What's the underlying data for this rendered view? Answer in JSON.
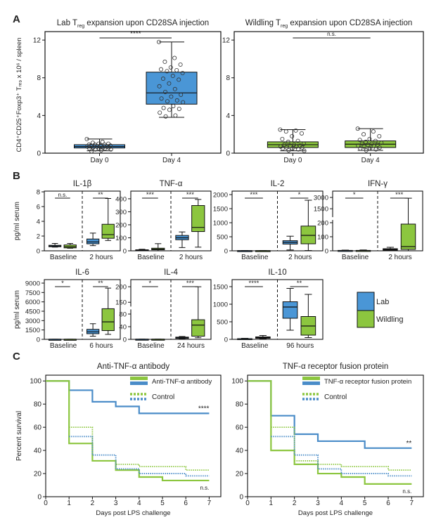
{
  "colors": {
    "lab": "#4a96d6",
    "wildling": "#8cc63f",
    "surv_blue": "#4a8cc8",
    "surv_green": "#8cc63f"
  },
  "chart_data": [
    {
      "panel": "A",
      "type": "box",
      "title": {
        "prefix": "Lab T",
        "sub": "reg",
        "suffix": " expansion upon CD28SA injection"
      },
      "ylabel": "CD4⁺CD25⁺Foxp3⁺ Tᵣₑ₉ x 10⁶ / spleen",
      "ylim": [
        0,
        12.9
      ],
      "yticks": [
        0,
        4,
        8,
        12
      ],
      "categories": [
        "Day 0",
        "Day 4"
      ],
      "group": "lab",
      "sig": "****",
      "boxes": [
        {
          "lo": 0.25,
          "q1": 0.55,
          "med": 0.7,
          "q3": 0.9,
          "hi": 1.5,
          "points": [
            1.5,
            1.2,
            1.1,
            1.0,
            1.0,
            0.9,
            0.9,
            0.9,
            0.8,
            0.8,
            0.8,
            0.7,
            0.7,
            0.7,
            0.6,
            0.6,
            0.6,
            0.5,
            0.5,
            0.5,
            0.4,
            0.4,
            0.3,
            0.2
          ]
        },
        {
          "lo": 3.8,
          "q1": 5.2,
          "med": 6.4,
          "q3": 8.6,
          "hi": 11.8,
          "points": [
            11.8,
            10.1,
            9.7,
            9.4,
            9.1,
            8.9,
            8.8,
            8.7,
            8.5,
            8.2,
            7.9,
            7.8,
            7.4,
            7.1,
            6.8,
            6.5,
            6.2,
            6.0,
            5.8,
            5.6,
            5.5,
            5.4,
            5.0,
            4.8,
            4.7,
            4.6,
            4.3,
            4.0,
            3.9
          ]
        }
      ]
    },
    {
      "panel": "A",
      "type": "box",
      "title": {
        "prefix": "Wildling T",
        "sub": "reg",
        "suffix": " expansion upon CD28SA injection"
      },
      "ylim": [
        0,
        12.9
      ],
      "yticks": [
        0,
        4,
        8,
        12
      ],
      "categories": [
        "Day 0",
        "Day 4"
      ],
      "group": "wildling",
      "sig": "n.s.",
      "boxes": [
        {
          "lo": 0.25,
          "q1": 0.6,
          "med": 0.9,
          "q3": 1.2,
          "hi": 2.5,
          "points": [
            2.5,
            2.4,
            2.3,
            2.1,
            1.8,
            1.5,
            1.3,
            1.2,
            1.0,
            0.9,
            0.9,
            0.8,
            0.8,
            0.7,
            0.7,
            0.6,
            0.6,
            0.5,
            0.5,
            0.4,
            0.3,
            0.25
          ]
        },
        {
          "lo": 0.3,
          "q1": 0.6,
          "med": 0.95,
          "q3": 1.3,
          "hi": 2.6,
          "points": [
            2.6,
            2.3,
            2.0,
            1.8,
            1.5,
            1.4,
            1.3,
            1.2,
            1.1,
            1.0,
            1.0,
            0.9,
            0.9,
            0.8,
            0.8,
            0.7,
            0.6,
            0.5,
            0.5,
            0.4,
            0.3
          ]
        }
      ]
    },
    {
      "panel": "B",
      "type": "box",
      "title": "IL-1β",
      "ylabel": "pg/ml serum",
      "ylim": [
        0,
        8.1
      ],
      "yticks": [
        0,
        2,
        4,
        6,
        8
      ],
      "categories": [
        "Baseline",
        "2 hours"
      ],
      "sig": [
        "n.s.",
        "**"
      ],
      "groups": [
        {
          "lab": {
            "lo": 0.5,
            "q1": 0.55,
            "med": 0.65,
            "q3": 0.75,
            "hi": 1.0
          },
          "wildling": {
            "lo": 0.35,
            "q1": 0.4,
            "med": 0.55,
            "q3": 0.8,
            "hi": 1.0
          }
        },
        {
          "lab": {
            "lo": 0.7,
            "q1": 0.95,
            "med": 1.2,
            "q3": 1.6,
            "hi": 2.4
          },
          "wildling": {
            "lo": 1.4,
            "q1": 1.7,
            "med": 2.2,
            "q3": 3.6,
            "hi": 7.1
          }
        }
      ]
    },
    {
      "panel": "B",
      "type": "box",
      "title": "TNF-α",
      "ylim": [
        0,
        459
      ],
      "yticks": [
        0,
        100,
        200,
        300,
        400
      ],
      "categories": [
        "Baseline",
        "2 hours"
      ],
      "sig": [
        "***",
        "***"
      ],
      "groups": [
        {
          "lab": {
            "lo": 0,
            "q1": 2,
            "med": 5,
            "q3": 8,
            "hi": 12
          },
          "wildling": {
            "lo": 0,
            "q1": 8,
            "med": 12,
            "q3": 20,
            "hi": 55
          }
        },
        {
          "lab": {
            "lo": 25,
            "q1": 85,
            "med": 100,
            "q3": 118,
            "hi": 145
          },
          "wildling": {
            "lo": 28,
            "q1": 148,
            "med": 180,
            "q3": 348,
            "hi": 395
          }
        }
      ]
    },
    {
      "panel": "B",
      "type": "box",
      "title": "IL-2",
      "ylim": [
        0,
        2125
      ],
      "yticks": [
        0,
        500,
        1000,
        1500,
        2000
      ],
      "categories": [
        "Baseline",
        "2 hours"
      ],
      "sig": [
        "***",
        "*"
      ],
      "groups": [
        {
          "lab": {
            "lo": 0,
            "q1": 3,
            "med": 5,
            "q3": 8,
            "hi": 12
          },
          "wildling": {
            "lo": 0,
            "q1": 3,
            "med": 5,
            "q3": 8,
            "hi": 12
          }
        },
        {
          "lab": {
            "lo": 30,
            "q1": 240,
            "med": 300,
            "q3": 360,
            "hi": 520
          },
          "wildling": {
            "lo": 10,
            "q1": 250,
            "med": 550,
            "q3": 880,
            "hi": 1800
          }
        }
      ]
    },
    {
      "panel": "B",
      "type": "box",
      "title": "IFN-γ",
      "axis_break": true,
      "segments": [
        [
          0,
          225
        ],
        [
          280,
          3840
        ]
      ],
      "yticks": [
        0,
        100,
        200,
        1500,
        3000
      ],
      "categories": [
        "Baseline",
        "2 hours"
      ],
      "sig": [
        "*",
        "***"
      ],
      "groups": [
        {
          "lab": {
            "lo": 0,
            "q1": 1,
            "med": 2,
            "q3": 3,
            "hi": 5
          },
          "wildling": {
            "lo": 0,
            "q1": 1,
            "med": 2,
            "q3": 3,
            "hi": 6
          }
        },
        {
          "lab": {
            "lo": 0,
            "q1": 5,
            "med": 10,
            "q3": 15,
            "hi": 25
          },
          "wildling": {
            "lo": 0,
            "q1": 10,
            "med": 30,
            "q3": 190,
            "hi": 2900
          }
        }
      ]
    },
    {
      "panel": "B",
      "type": "box",
      "title": "IL-6",
      "ylabel": "pg/ml serum",
      "ylim": [
        0,
        9560
      ],
      "yticks": [
        0,
        1500,
        3000,
        4500,
        6000,
        7500,
        9000
      ],
      "categories": [
        "Baseline",
        "6 hours"
      ],
      "sig": [
        "*",
        "**"
      ],
      "groups": [
        {
          "lab": {
            "lo": 0,
            "q1": 5,
            "med": 10,
            "q3": 15,
            "hi": 20
          },
          "wildling": {
            "lo": 0,
            "q1": 5,
            "med": 10,
            "q3": 15,
            "hi": 20
          }
        },
        {
          "lab": {
            "lo": 500,
            "q1": 900,
            "med": 1200,
            "q3": 1600,
            "hi": 2500
          },
          "wildling": {
            "lo": 800,
            "q1": 1400,
            "med": 2800,
            "q3": 4900,
            "hi": 8200
          }
        }
      ]
    },
    {
      "panel": "B",
      "type": "box",
      "title": "IL-4",
      "axis_break": true,
      "segments": [
        [
          0,
          85
        ],
        [
          146,
          223
        ]
      ],
      "yticks": [
        0,
        40,
        80,
        150,
        200
      ],
      "categories": [
        "Baseline",
        "24 hours"
      ],
      "sig": [
        "*",
        "***"
      ],
      "groups": [
        {
          "lab": {
            "lo": 0,
            "q1": 0.2,
            "med": 0.4,
            "q3": 0.6,
            "hi": 1
          },
          "wildling": {
            "lo": 0,
            "q1": 0.2,
            "med": 0.4,
            "q3": 0.6,
            "hi": 1
          }
        },
        {
          "lab": {
            "lo": 2,
            "q1": 3,
            "med": 5,
            "q3": 7,
            "hi": 9
          },
          "wildling": {
            "lo": 5,
            "q1": 10,
            "med": 45,
            "q3": 62,
            "hi": 200
          }
        }
      ]
    },
    {
      "panel": "B",
      "type": "box",
      "title": "IL-10",
      "ylim": [
        0,
        1700
      ],
      "yticks": [
        0,
        500,
        1000,
        1500
      ],
      "categories": [
        "Baseline",
        "96 hours"
      ],
      "sig": [
        "****",
        "**"
      ],
      "groups": [
        {
          "lab": {
            "lo": 5,
            "q1": 10,
            "med": 15,
            "q3": 20,
            "hi": 30
          },
          "wildling": {
            "lo": 10,
            "q1": 30,
            "med": 50,
            "q3": 70,
            "hi": 110
          }
        },
        {
          "lab": {
            "lo": 260,
            "q1": 600,
            "med": 920,
            "q3": 1070,
            "hi": 1450
          },
          "wildling": {
            "lo": 50,
            "q1": 120,
            "med": 380,
            "q3": 650,
            "hi": 1280
          }
        }
      ]
    },
    {
      "panel": "C",
      "type": "line",
      "title": "Anti-TNF-α antibody",
      "xlabel": "Days post LPS challenge",
      "ylabel": "Percent survival",
      "xlim": [
        0,
        7.5
      ],
      "ylim": [
        0,
        105
      ],
      "xticks": [
        0,
        1,
        2,
        3,
        4,
        5,
        6,
        7
      ],
      "yticks": [
        0,
        20,
        40,
        60,
        80,
        100
      ],
      "legend": {
        "treatment": "Anti-TNF-α antibody",
        "control": "Control"
      },
      "annotations": {
        "blue": "****",
        "green": "n.s."
      },
      "series": [
        {
          "color": "blue",
          "style": "solid",
          "steps": [
            [
              0,
              100
            ],
            [
              1,
              92
            ],
            [
              2,
              82
            ],
            [
              3,
              78
            ],
            [
              4,
              72
            ],
            [
              7,
              72
            ]
          ]
        },
        {
          "color": "green",
          "style": "solid",
          "steps": [
            [
              0,
              100
            ],
            [
              1,
              46
            ],
            [
              2,
              31
            ],
            [
              3,
              23
            ],
            [
              4,
              17
            ],
            [
              5,
              14
            ],
            [
              7,
              14
            ]
          ]
        },
        {
          "color": "green",
          "style": "dotted",
          "steps": [
            [
              1,
              60
            ],
            [
              2,
              31
            ],
            [
              3,
              28
            ],
            [
              4,
              26
            ],
            [
              6,
              23
            ],
            [
              7,
              23
            ]
          ]
        },
        {
          "color": "blue",
          "style": "dotted",
          "steps": [
            [
              1,
              52
            ],
            [
              2,
              36
            ],
            [
              3,
              24
            ],
            [
              4,
              20
            ],
            [
              6,
              18
            ],
            [
              7,
              18
            ]
          ]
        }
      ]
    },
    {
      "panel": "C",
      "type": "line",
      "title": "TNF-α receptor fusion protein",
      "xlabel": "Days post LPS challenge",
      "xlim": [
        0,
        7.5
      ],
      "ylim": [
        0,
        105
      ],
      "xticks": [
        0,
        1,
        2,
        3,
        4,
        5,
        6,
        7
      ],
      "yticks": [
        0,
        20,
        40,
        60,
        80,
        100
      ],
      "legend": {
        "treatment": "TNF-α receptor fusion protein",
        "control": "Control"
      },
      "annotations": {
        "blue": "**",
        "green": "n.s."
      },
      "series": [
        {
          "color": "blue",
          "style": "solid",
          "steps": [
            [
              0,
              100
            ],
            [
              1,
              70
            ],
            [
              2,
              54
            ],
            [
              3,
              48
            ],
            [
              5,
              42
            ],
            [
              7,
              42
            ]
          ]
        },
        {
          "color": "green",
          "style": "solid",
          "steps": [
            [
              0,
              100
            ],
            [
              1,
              40
            ],
            [
              2,
              28
            ],
            [
              3,
              20
            ],
            [
              4,
              17
            ],
            [
              5,
              11
            ],
            [
              7,
              11
            ]
          ]
        },
        {
          "color": "green",
          "style": "dotted",
          "steps": [
            [
              1,
              60
            ],
            [
              2,
              31
            ],
            [
              3,
              28
            ],
            [
              4,
              26
            ],
            [
              6,
              23
            ],
            [
              7,
              23
            ]
          ]
        },
        {
          "color": "blue",
          "style": "dotted",
          "steps": [
            [
              1,
              52
            ],
            [
              2,
              36
            ],
            [
              3,
              24
            ],
            [
              4,
              20
            ],
            [
              6,
              18
            ],
            [
              7,
              18
            ]
          ]
        }
      ]
    }
  ],
  "panel_labels": [
    "A",
    "B",
    "C"
  ],
  "legend_b": {
    "lab": "Lab",
    "wildling": "Wildling"
  }
}
